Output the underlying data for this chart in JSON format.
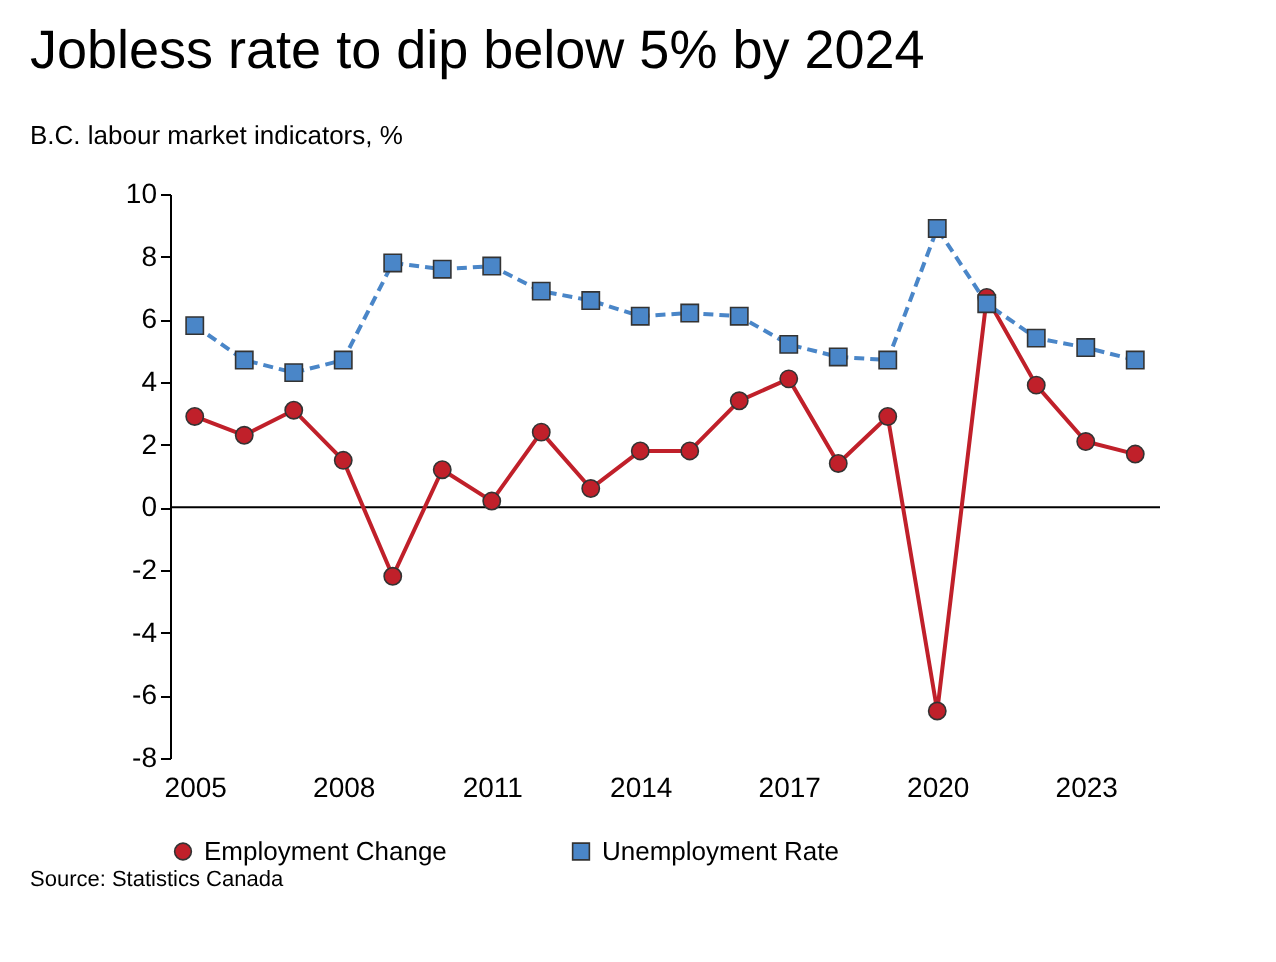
{
  "chart_data": {
    "type": "line",
    "title": "Jobless rate to dip below 5% by 2024",
    "subtitle": "B.C. labour market indicators, %",
    "categories": [
      "2005",
      null,
      null,
      "2008",
      null,
      null,
      "2011",
      null,
      null,
      "2014",
      null,
      null,
      "2017",
      null,
      null,
      "2020",
      null,
      null,
      "2023",
      null
    ],
    "series": [
      {
        "name": "Employment Change",
        "color": "#c0202a",
        "marker": "circle",
        "line_style": "solid",
        "values": [
          2.9,
          2.3,
          3.1,
          1.5,
          -2.2,
          1.2,
          0.2,
          2.4,
          0.6,
          1.8,
          1.8,
          3.4,
          4.1,
          1.4,
          2.9,
          -6.5,
          6.7,
          3.9,
          2.1,
          1.7
        ]
      },
      {
        "name": "Unemployment Rate",
        "color": "#4a86c8",
        "marker": "square",
        "line_style": "dashed",
        "values": [
          5.8,
          4.7,
          4.3,
          4.7,
          7.8,
          7.6,
          7.7,
          6.9,
          6.6,
          6.1,
          6.2,
          6.1,
          5.2,
          4.8,
          4.7,
          8.9,
          6.5,
          5.4,
          5.1,
          4.7
        ]
      }
    ],
    "ref_lines": [
      {
        "axis": "y",
        "value": 0,
        "color": "#000000"
      }
    ],
    "ylim": [
      -8,
      10
    ],
    "yticks": [
      -8,
      -6,
      -4,
      -2,
      0,
      2,
      4,
      6,
      8,
      10
    ],
    "grid": false,
    "legend": "bottom",
    "annotations": [
      "Source: Statistics Canada"
    ]
  }
}
